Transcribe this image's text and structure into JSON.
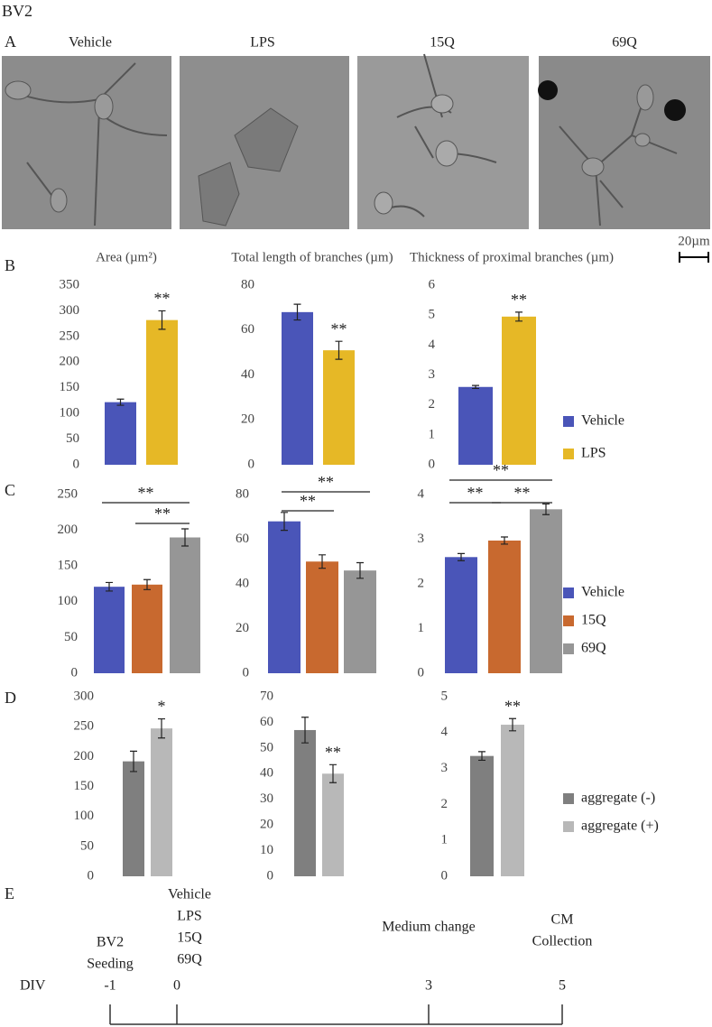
{
  "figure_title": "BV2",
  "panel_a": {
    "label": "A",
    "images": [
      "Vehicle",
      "LPS",
      "15Q",
      "69Q"
    ],
    "scale_bar": "20µm"
  },
  "chart_data": [
    {
      "type": "bar",
      "panel": "B",
      "series": [
        {
          "name": "Vehicle",
          "color": "#4a55b8"
        },
        {
          "name": "LPS",
          "color": "#e6b826"
        }
      ],
      "charts": [
        {
          "title": "Area (µm²)",
          "ylim": [
            0,
            350
          ],
          "yticks": [
            0,
            50,
            100,
            150,
            200,
            250,
            300,
            350
          ],
          "values": [
            122,
            282
          ],
          "errors": [
            6,
            18
          ],
          "significance": [
            null,
            "**"
          ]
        },
        {
          "title": "Total length  of branches (µm)",
          "ylim": [
            0,
            80
          ],
          "yticks": [
            0,
            20,
            40,
            60,
            80
          ],
          "values": [
            68,
            51
          ],
          "errors": [
            3.5,
            4
          ],
          "significance": [
            null,
            "**"
          ]
        },
        {
          "title": "Thickness  of proximal branches (µm)",
          "ylim": [
            0,
            6
          ],
          "yticks": [
            0,
            1,
            2,
            3,
            4,
            5,
            6
          ],
          "values": [
            2.6,
            4.95
          ],
          "errors": [
            0.05,
            0.15
          ],
          "significance": [
            null,
            "**"
          ]
        }
      ]
    },
    {
      "type": "bar",
      "panel": "C",
      "series": [
        {
          "name": "Vehicle",
          "color": "#4a55b8"
        },
        {
          "name": "15Q",
          "color": "#c8692f"
        },
        {
          "name": "69Q",
          "color": "#969696"
        }
      ],
      "charts": [
        {
          "ylim": [
            0,
            250
          ],
          "yticks": [
            0,
            50,
            100,
            150,
            200,
            250
          ],
          "values": [
            121,
            124,
            190
          ],
          "errors": [
            6,
            7,
            12
          ],
          "brackets": [
            "**",
            "**"
          ]
        },
        {
          "ylim": [
            0,
            80
          ],
          "yticks": [
            0,
            20,
            40,
            60,
            80
          ],
          "values": [
            68,
            50,
            46
          ],
          "errors": [
            4,
            3,
            3.5
          ],
          "brackets": [
            "**",
            "**"
          ]
        },
        {
          "ylim": [
            0,
            4
          ],
          "yticks": [
            0,
            1,
            2,
            3,
            4
          ],
          "values": [
            2.6,
            2.97,
            3.67
          ],
          "errors": [
            0.08,
            0.08,
            0.12
          ],
          "brackets": [
            "**",
            "**",
            "**"
          ]
        }
      ]
    },
    {
      "type": "bar",
      "panel": "D",
      "series": [
        {
          "name": "aggregate (-)",
          "color": "#7f7f7f"
        },
        {
          "name": "aggregate (+)",
          "color": "#b8b8b8"
        }
      ],
      "charts": [
        {
          "ylim": [
            0,
            300
          ],
          "yticks": [
            0,
            50,
            100,
            150,
            200,
            250,
            300
          ],
          "values": [
            192,
            247
          ],
          "errors": [
            17,
            16
          ],
          "significance": [
            null,
            "*"
          ]
        },
        {
          "ylim": [
            0,
            70
          ],
          "yticks": [
            0,
            10,
            20,
            30,
            40,
            50,
            60,
            70
          ],
          "values": [
            57,
            40
          ],
          "errors": [
            5,
            3.5
          ],
          "significance": [
            null,
            "**"
          ]
        },
        {
          "ylim": [
            0,
            5
          ],
          "yticks": [
            0,
            1,
            2,
            3,
            4,
            5
          ],
          "values": [
            3.35,
            4.22
          ],
          "errors": [
            0.12,
            0.17
          ],
          "significance": [
            null,
            "**"
          ]
        }
      ]
    }
  ],
  "timeline": {
    "panel": "E",
    "label": "DIV",
    "ticks": [
      -1,
      0,
      3,
      5
    ],
    "events": [
      [
        "BV2",
        "Seeding"
      ],
      [
        "Vehicle",
        "LPS",
        "15Q",
        "69Q"
      ],
      [
        "Medium change"
      ],
      [
        "CM",
        "Collection"
      ]
    ]
  }
}
